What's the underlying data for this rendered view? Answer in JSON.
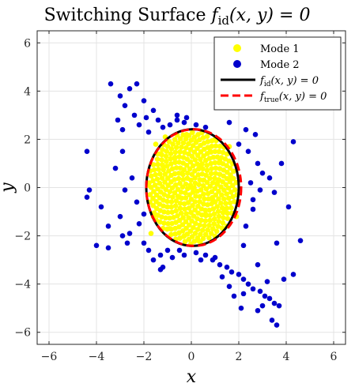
{
  "chart_data": {
    "type": "scatter",
    "title": {
      "prefix": "Switching Surface ",
      "func": "f",
      "sub": "id",
      "args": "(x, y) = 0"
    },
    "xlabel": "x",
    "ylabel": "y",
    "xlim": [
      -6.5,
      6.5
    ],
    "ylim": [
      -6.5,
      6.5
    ],
    "xticks": [
      -6,
      -4,
      -2,
      0,
      2,
      4,
      6
    ],
    "yticks": [
      -6,
      -4,
      -2,
      0,
      2,
      4,
      6
    ],
    "grid": true,
    "legend_position": "top-right",
    "legend": [
      {
        "func": "Mode 1",
        "sub": "",
        "args": "",
        "marker": "dot",
        "color": "#ffff00"
      },
      {
        "func": "Mode 2",
        "sub": "",
        "args": "",
        "marker": "dot",
        "color": "#0000cc"
      },
      {
        "func": "f",
        "sub": "id",
        "args": "(x, y) = 0",
        "marker": "solid-line",
        "color": "#000000"
      },
      {
        "func": "f",
        "sub": "true",
        "args": "(x, y) = 0",
        "marker": "dashed-line",
        "color": "#ff0000"
      }
    ],
    "series": [
      {
        "name": "Mode 1",
        "color": "#ffff00",
        "points": [
          [
            0.0,
            0.0
          ],
          [
            0.5,
            0.3
          ],
          [
            -0.4,
            0.6
          ],
          [
            0.9,
            -0.5
          ],
          [
            -1.0,
            -0.8
          ],
          [
            1.2,
            1.1
          ],
          [
            -1.3,
            1.4
          ],
          [
            1.5,
            -1.6
          ],
          [
            -1.6,
            -1.2
          ],
          [
            0.2,
            1.9
          ],
          [
            -0.3,
            -2.0
          ],
          [
            1.7,
            0.4
          ],
          [
            -1.8,
            0.1
          ],
          [
            0.8,
            1.5
          ],
          [
            -0.9,
            -1.7
          ],
          [
            1.4,
            -0.9
          ],
          [
            -1.2,
            0.9
          ],
          [
            0.6,
            -1.1
          ],
          [
            -0.7,
            1.2
          ],
          [
            1.0,
            2.0
          ],
          [
            -1.1,
            2.1
          ],
          [
            0.3,
            -2.2
          ],
          [
            -0.2,
            2.2
          ],
          [
            1.6,
            1.7
          ],
          [
            -1.7,
            -1.9
          ],
          [
            1.9,
            -1.2
          ],
          [
            -1.5,
            1.8
          ],
          [
            0.4,
            0.9
          ],
          [
            -0.5,
            -0.4
          ],
          [
            1.1,
            0.2
          ]
        ]
      },
      {
        "name": "Mode 2",
        "color": "#0000cc",
        "points": [
          [
            -3.4,
            4.3
          ],
          [
            -2.3,
            4.3
          ],
          [
            -2.6,
            4.1
          ],
          [
            -3.0,
            3.8
          ],
          [
            -2.0,
            3.6
          ],
          [
            -2.8,
            3.4
          ],
          [
            -1.6,
            3.2
          ],
          [
            -2.4,
            3.0
          ],
          [
            -1.9,
            2.9
          ],
          [
            -1.4,
            2.8
          ],
          [
            -2.2,
            2.6
          ],
          [
            -1.2,
            2.5
          ],
          [
            -1.8,
            2.3
          ],
          [
            -3.1,
            2.8
          ],
          [
            -2.9,
            2.4
          ],
          [
            -0.9,
            2.6
          ],
          [
            -0.6,
            2.8
          ],
          [
            -0.3,
            2.7
          ],
          [
            0.2,
            2.6
          ],
          [
            0.6,
            2.5
          ],
          [
            1.6,
            2.7
          ],
          [
            2.3,
            2.4
          ],
          [
            2.7,
            2.2
          ],
          [
            2.0,
            1.8
          ],
          [
            2.4,
            1.5
          ],
          [
            2.8,
            1.0
          ],
          [
            3.0,
            0.6
          ],
          [
            2.5,
            0.2
          ],
          [
            2.9,
            -0.1
          ],
          [
            3.3,
            0.4
          ],
          [
            4.3,
            1.9
          ],
          [
            3.8,
            1.0
          ],
          [
            3.5,
            -0.2
          ],
          [
            4.1,
            -0.8
          ],
          [
            2.6,
            -0.9
          ],
          [
            2.3,
            -1.6
          ],
          [
            2.2,
            -2.4
          ],
          [
            2.8,
            -3.2
          ],
          [
            3.6,
            -2.3
          ],
          [
            4.6,
            -2.2
          ],
          [
            -2.9,
            1.5
          ],
          [
            -3.2,
            0.8
          ],
          [
            -2.5,
            0.4
          ],
          [
            -2.8,
            -0.1
          ],
          [
            -2.3,
            -0.6
          ],
          [
            -3.0,
            -1.2
          ],
          [
            -2.2,
            -1.5
          ],
          [
            -2.6,
            -1.9
          ],
          [
            -2.0,
            -2.3
          ],
          [
            -3.5,
            -2.5
          ],
          [
            -2.9,
            -2.0
          ],
          [
            -1.8,
            -2.6
          ],
          [
            -1.3,
            -2.8
          ],
          [
            -0.8,
            -2.9
          ],
          [
            -0.3,
            -2.8
          ],
          [
            0.2,
            -2.7
          ],
          [
            0.6,
            -2.8
          ],
          [
            0.9,
            -3.0
          ],
          [
            1.2,
            -3.2
          ],
          [
            1.5,
            -3.3
          ],
          [
            1.7,
            -3.5
          ],
          [
            2.0,
            -3.6
          ],
          [
            2.2,
            -3.8
          ],
          [
            2.4,
            -4.0
          ],
          [
            2.6,
            -4.2
          ],
          [
            2.9,
            -4.3
          ],
          [
            3.1,
            -4.5
          ],
          [
            3.3,
            -4.6
          ],
          [
            3.5,
            -4.8
          ],
          [
            3.7,
            -4.9
          ],
          [
            3.4,
            -5.5
          ],
          [
            3.6,
            -5.7
          ],
          [
            2.8,
            -5.1
          ],
          [
            3.0,
            -4.9
          ],
          [
            2.2,
            -4.4
          ],
          [
            1.6,
            -4.1
          ],
          [
            1.3,
            -3.7
          ],
          [
            1.8,
            -4.5
          ],
          [
            2.1,
            -5.0
          ],
          [
            3.9,
            -3.8
          ],
          [
            4.3,
            -3.6
          ],
          [
            3.2,
            -3.9
          ],
          [
            -1.2,
            -3.3
          ],
          [
            -1.3,
            -3.4
          ],
          [
            -4.4,
            1.5
          ],
          [
            -4.3,
            -0.1
          ],
          [
            -4.4,
            -0.4
          ],
          [
            -3.8,
            -0.8
          ],
          [
            -4.0,
            -2.4
          ],
          [
            -3.5,
            -1.6
          ],
          [
            -2.7,
            -2.3
          ],
          [
            -1.6,
            -3.0
          ],
          [
            -0.5,
            -2.6
          ],
          [
            0.4,
            -3.0
          ],
          [
            1.0,
            -2.9
          ],
          [
            -1.0,
            -2.6
          ],
          [
            -2.0,
            -1.1
          ],
          [
            -0.6,
            3.0
          ],
          [
            -0.2,
            2.9
          ],
          [
            2.6,
            -0.5
          ]
        ]
      }
    ],
    "curves": [
      {
        "name": "f_id",
        "cx": 0.05,
        "cy": 0.0,
        "rx": 1.95,
        "ry": 2.42,
        "color": "#000000",
        "dashed": false
      },
      {
        "name": "f_true",
        "cx": 0.1,
        "cy": 0.0,
        "rx": 2.0,
        "ry": 2.42,
        "color": "#ff0000",
        "dashed": true
      }
    ]
  }
}
